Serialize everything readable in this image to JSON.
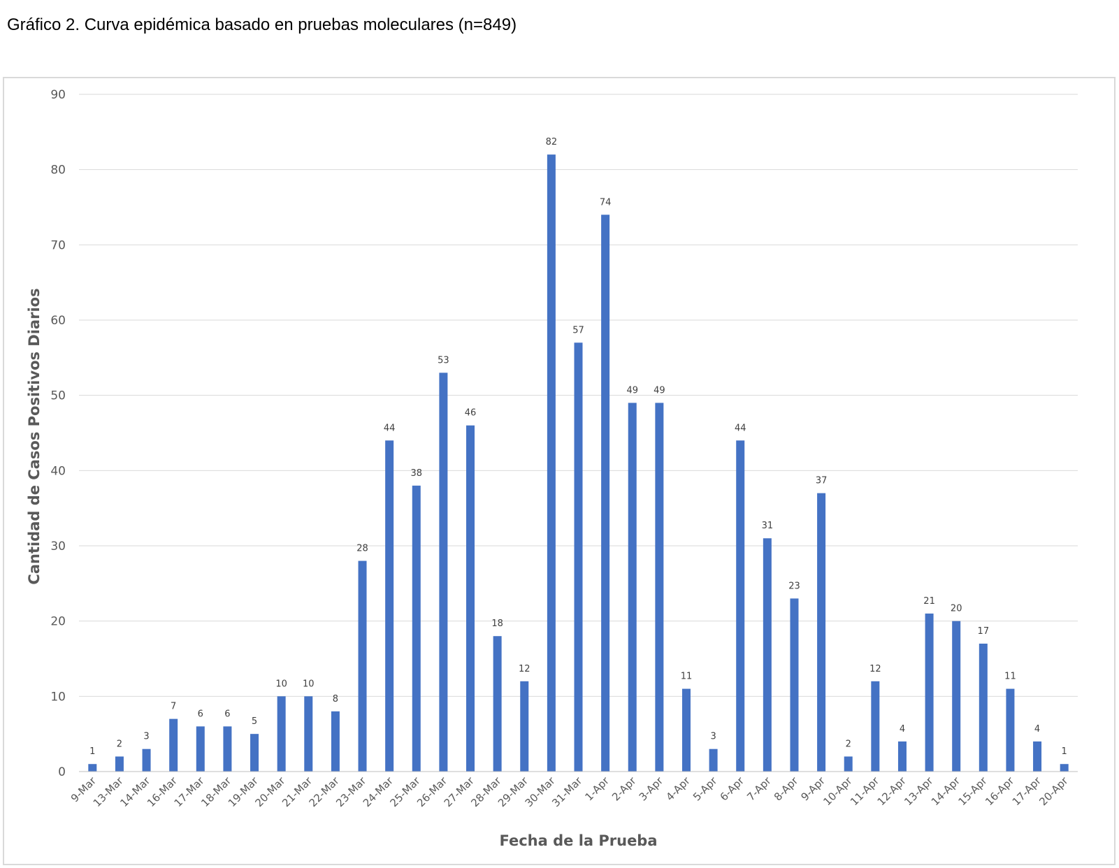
{
  "page": {
    "title": "Gráfico 2. Curva epidémica basado en pruebas moleculares (n=849)"
  },
  "chart_data": {
    "type": "bar",
    "title": "",
    "xlabel": "Fecha de la Prueba",
    "ylabel": "Cantidad de Casos Positivos Diarios",
    "ylim": [
      0,
      90
    ],
    "yticks": [
      0,
      10,
      20,
      30,
      40,
      50,
      60,
      70,
      80,
      90
    ],
    "grid": true,
    "legend": "none",
    "bar_color": "#4472c4",
    "categories": [
      "9-Mar",
      "13-Mar",
      "14-Mar",
      "16-Mar",
      "17-Mar",
      "18-Mar",
      "19-Mar",
      "20-Mar",
      "21-Mar",
      "22-Mar",
      "23-Mar",
      "24-Mar",
      "25-Mar",
      "26-Mar",
      "27-Mar",
      "28-Mar",
      "29-Mar",
      "30-Mar",
      "31-Mar",
      "1-Apr",
      "2-Apr",
      "3-Apr",
      "4-Apr",
      "5-Apr",
      "6-Apr",
      "7-Apr",
      "8-Apr",
      "9-Apr",
      "10-Apr",
      "11-Apr",
      "12-Apr",
      "13-Apr",
      "14-Apr",
      "15-Apr",
      "16-Apr",
      "17-Apr",
      "20-Apr"
    ],
    "values": [
      1,
      2,
      3,
      7,
      6,
      6,
      5,
      10,
      10,
      8,
      28,
      44,
      38,
      53,
      46,
      18,
      12,
      82,
      57,
      74,
      49,
      49,
      11,
      3,
      44,
      31,
      23,
      37,
      2,
      12,
      4,
      21,
      20,
      17,
      11,
      4,
      1
    ]
  }
}
